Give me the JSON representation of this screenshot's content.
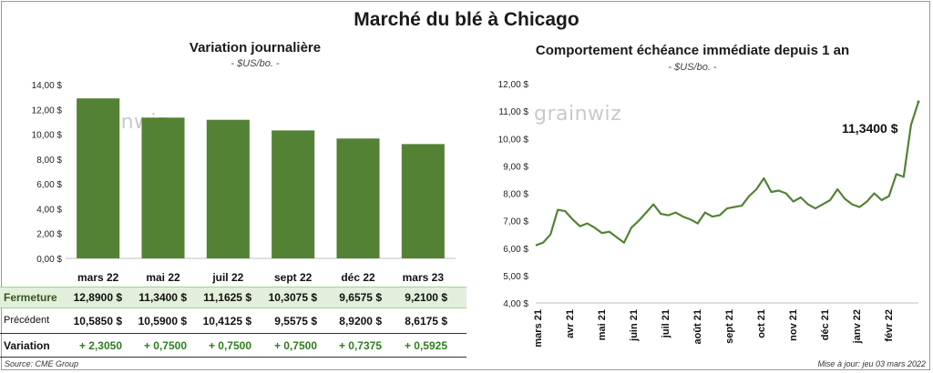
{
  "title": "Marché du blé à Chicago",
  "source": "Source: CME Group",
  "updated": "Mise à jour: jeu 03 mars 2022",
  "logo_text": "grainwiz",
  "left": {
    "title": "Variation journalière",
    "unit": "- $US/bo. -",
    "table": {
      "row_labels": {
        "close": "Fermeture",
        "previous": "Précédent",
        "change": "Variation"
      },
      "close": [
        "12,8900 $",
        "11,3400 $",
        "11,1625 $",
        "10,3075 $",
        "9,6575 $",
        "9,2100 $"
      ],
      "previous": [
        "10,5850 $",
        "10,5900 $",
        "10,4125 $",
        "9,5575 $",
        "8,9200 $",
        "8,6175 $"
      ],
      "change": [
        "+ 2,3050",
        "+ 0,7500",
        "+ 0,7500",
        "+ 0,7500",
        "+ 0,7375",
        "+ 0,5925"
      ]
    }
  },
  "right": {
    "title": "Comportement  échéance immédiate depuis 1 an",
    "unit": "- $US/bo. -",
    "end_label": "11,3400 $"
  },
  "chart_data": [
    {
      "type": "bar",
      "title": "Variation journalière",
      "categories": [
        "mars 22",
        "mai 22",
        "juil 22",
        "sept 22",
        "déc 22",
        "mars 23"
      ],
      "values": [
        12.89,
        11.34,
        11.1625,
        10.3075,
        9.6575,
        9.21
      ],
      "ylim": [
        0,
        14
      ],
      "yticks": [
        "0,00 $",
        "2,00 $",
        "4,00 $",
        "6,00 $",
        "8,00 $",
        "10,00 $",
        "12,00 $",
        "14,00 $"
      ],
      "color": "#548235",
      "grid": false
    },
    {
      "type": "line",
      "title": "Comportement  échéance immédiate depuis 1 an",
      "x_ticks": [
        "mars 21",
        "avr 21",
        "mai 21",
        "juin 21",
        "juil 21",
        "août 21",
        "sept 21",
        "oct 21",
        "nov 21",
        "déc 21",
        "janv 22",
        "févr 22"
      ],
      "ylim": [
        4,
        12
      ],
      "yticks": [
        "4,00 $",
        "5,00 $",
        "6,00 $",
        "7,00 $",
        "8,00 $",
        "9,00 $",
        "10,00 $",
        "11,00 $",
        "12,00 $"
      ],
      "x_week": [
        0,
        1,
        2,
        3,
        4,
        5,
        6,
        7,
        8,
        9,
        10,
        11,
        12,
        13,
        14,
        15,
        16,
        17,
        18,
        19,
        20,
        21,
        22,
        23,
        24,
        25,
        26,
        27,
        28,
        29,
        30,
        31,
        32,
        33,
        34,
        35,
        36,
        37,
        38,
        39,
        40,
        41,
        42,
        43,
        44,
        45,
        46,
        47,
        48,
        49,
        50,
        51,
        52
      ],
      "values": [
        6.1,
        6.2,
        6.5,
        7.4,
        7.35,
        7.05,
        6.8,
        6.9,
        6.75,
        6.55,
        6.6,
        6.4,
        6.2,
        6.75,
        7.0,
        7.3,
        7.6,
        7.25,
        7.2,
        7.3,
        7.15,
        7.05,
        6.9,
        7.3,
        7.15,
        7.2,
        7.45,
        7.5,
        7.55,
        7.9,
        8.15,
        8.55,
        8.05,
        8.1,
        8.0,
        7.7,
        7.85,
        7.6,
        7.45,
        7.6,
        7.75,
        8.15,
        7.8,
        7.6,
        7.5,
        7.7,
        8.0,
        7.75,
        7.9,
        8.7,
        8.6,
        10.5,
        11.34
      ],
      "series_color": "#548235",
      "end_label": "11,3400 $",
      "grid": false
    }
  ]
}
